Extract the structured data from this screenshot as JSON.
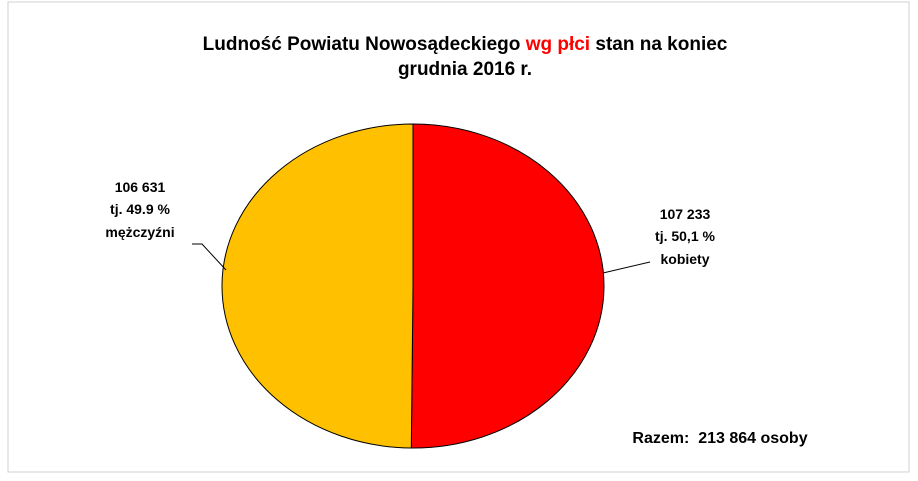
{
  "chart_data": {
    "type": "pie",
    "title": {
      "line1": [
        {
          "text": "Ludność Powiatu Nowosądeckiego",
          "color": "#000000"
        },
        {
          "text": "wg płci",
          "color": "#ff0000"
        },
        {
          "text": "stan na koniec",
          "color": "#000000"
        }
      ],
      "line2": "grudnia 2016 r."
    },
    "categories": [
      "kobiety",
      "mężczyźni"
    ],
    "values": [
      107233,
      106631
    ],
    "value_labels": [
      "107 233",
      "106 631"
    ],
    "percent_labels": [
      "tj. 50,1 %",
      "tj. 49.9 %"
    ],
    "colors": [
      "#ff0000",
      "#ffc000"
    ],
    "total_label": "Razem:  213 864 osoby"
  }
}
